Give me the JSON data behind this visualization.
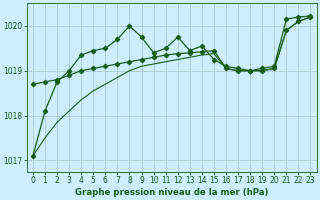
{
  "background_color": "#cceeff",
  "grid_color": "#aacccc",
  "line_color": "#1a5c1a",
  "title": "Graphe pression niveau de la mer (hPa)",
  "xlim": [
    -0.5,
    23.5
  ],
  "ylim": [
    1016.75,
    1020.5
  ],
  "yticks": [
    1017,
    1018,
    1019,
    1020
  ],
  "xticks": [
    0,
    1,
    2,
    3,
    4,
    5,
    6,
    7,
    8,
    9,
    10,
    11,
    12,
    13,
    14,
    15,
    16,
    17,
    18,
    19,
    20,
    21,
    22,
    23
  ],
  "curve_spiky_x": [
    0,
    1,
    2,
    3,
    4,
    5,
    6,
    7,
    8,
    9,
    10,
    11,
    12,
    13,
    14,
    15,
    16,
    17,
    18,
    19,
    20,
    21,
    22,
    23
  ],
  "curve_spiky_y": [
    1017.1,
    1018.1,
    1018.75,
    1019.0,
    1019.35,
    1019.45,
    1019.5,
    1019.7,
    1020.0,
    1019.75,
    1019.4,
    1019.5,
    1019.75,
    1019.45,
    1019.55,
    1019.25,
    1019.1,
    1019.05,
    1019.0,
    1019.05,
    1019.1,
    1020.15,
    1020.2,
    1020.22
  ],
  "curve_mid_x": [
    0,
    1,
    2,
    3,
    4,
    5,
    6,
    7,
    8,
    9,
    10,
    11,
    12,
    13,
    14,
    15,
    16,
    17,
    18,
    19,
    20,
    21,
    22,
    23
  ],
  "curve_mid_y": [
    1018.7,
    1018.75,
    1018.8,
    1018.9,
    1019.0,
    1019.05,
    1019.1,
    1019.15,
    1019.2,
    1019.25,
    1019.3,
    1019.35,
    1019.38,
    1019.4,
    1019.42,
    1019.45,
    1019.05,
    1019.0,
    1019.0,
    1019.0,
    1019.05,
    1019.9,
    1020.1,
    1020.2
  ],
  "curve_linear_x": [
    0,
    1,
    2,
    3,
    4,
    5,
    6,
    7,
    8,
    9,
    10,
    11,
    12,
    13,
    14,
    15,
    16,
    17,
    18,
    19,
    20,
    21,
    22,
    23
  ],
  "curve_linear_y": [
    1017.1,
    1017.5,
    1017.85,
    1018.1,
    1018.35,
    1018.55,
    1018.7,
    1018.85,
    1019.0,
    1019.1,
    1019.15,
    1019.2,
    1019.25,
    1019.3,
    1019.35,
    1019.38,
    1019.05,
    1019.0,
    1019.0,
    1019.0,
    1019.05,
    1019.9,
    1020.1,
    1020.2
  ]
}
